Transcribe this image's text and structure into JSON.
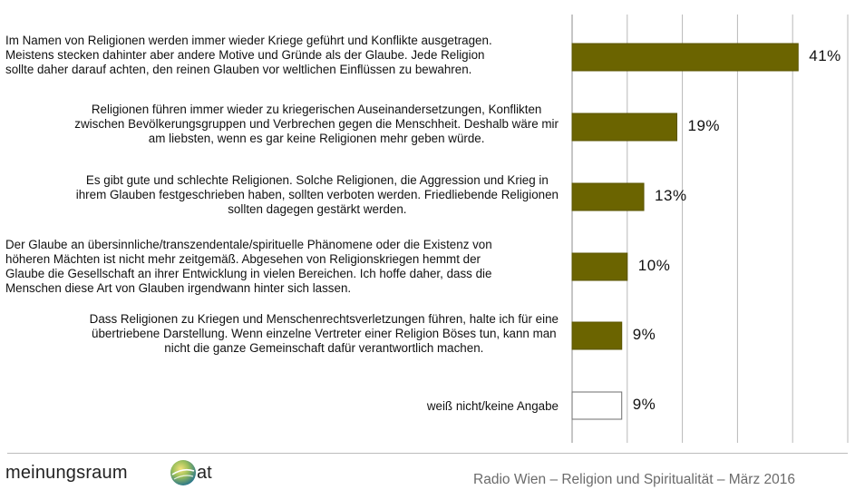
{
  "chart_data": {
    "type": "bar",
    "orientation": "horizontal",
    "categories": [
      "Im Namen von Religionen werden immer wieder Kriege geführt und Konflikte ausgetragen.\nMeistens stecken dahinter aber andere Motive und Gründe als der Glaube. Jede Religion\nsollte daher darauf achten, den reinen Glauben vor weltlichen Einflüssen zu bewahren.",
      "Religionen führen immer wieder zu kriegerischen Auseinandersetzungen, Konflikten\nzwischen Bevölkerungsgruppen und Verbrechen gegen die Menschheit. Deshalb wäre mir\nam liebsten, wenn es gar keine Religionen mehr geben würde.",
      "Es gibt gute und schlechte Religionen. Solche Religionen, die Aggression und Krieg in\nihrem Glauben festgeschrieben haben, sollten verboten werden. Friedliebende Religionen\nsollten dagegen gestärkt werden.",
      "Der Glaube an übersinnliche/transzendentale/spirituelle Phänomene oder die Existenz von\nhöheren Mächten ist nicht mehr zeitgemäß. Abgesehen von Religionskriegen hemmt der\nGlaube die Gesellschaft an ihrer Entwicklung in vielen Bereichen. Ich hoffe daher, dass die\nMenschen diese Art von Glauben irgendwann hinter sich lassen.",
      "Dass Religionen zu Kriegen und Menschenrechtsverletzungen führen, halte ich für eine\nübertriebene Darstellung. Wenn einzelne Vertreter einer Religion Böses tun, kann man\nnicht die ganze Gemeinschaft dafür verantwortlich machen.",
      "weiß nicht/keine Angabe"
    ],
    "values": [
      41,
      19,
      13,
      10,
      9,
      9
    ],
    "value_labels": [
      "41%",
      "19%",
      "13%",
      "10%",
      "9%",
      "9%"
    ],
    "bar_colors": [
      "#6b6400",
      "#6b6400",
      "#6b6400",
      "#6b6400",
      "#6b6400",
      "#ffffff"
    ],
    "xlim": [
      0,
      50
    ],
    "grid": true,
    "title": "",
    "xlabel": "",
    "ylabel": ""
  },
  "footer": {
    "logo_text": "meinungsraum",
    "logo_suffix": "at",
    "caption": "Radio Wien – Religion und Spiritualität – März 2016"
  }
}
